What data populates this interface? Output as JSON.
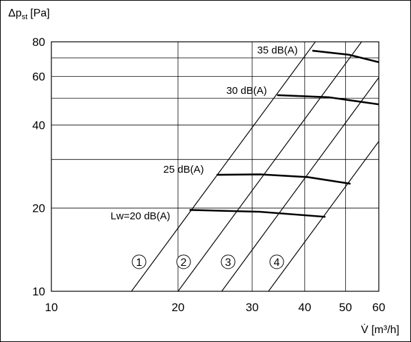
{
  "chart_data": {
    "type": "line",
    "y_label": {
      "main": "Δp",
      "sub": "st",
      "unit": "[Pa]"
    },
    "x_label": "V̇ [m³/h]",
    "log_x": true,
    "log_y": true,
    "grid": true,
    "xlim": [
      10,
      60
    ],
    "ylim": [
      10,
      80
    ],
    "xticks": [
      10,
      20,
      30,
      40,
      50,
      60
    ],
    "yticks": [
      10,
      20,
      40,
      60,
      80
    ],
    "y_minor_grid": [
      30,
      50,
      70
    ],
    "color": "#000000",
    "series": [
      {
        "name": "1",
        "x": [
          15.5,
          42.4
        ],
        "values": [
          10,
          80
        ]
      },
      {
        "name": "2",
        "x": [
          20,
          54.6
        ],
        "values": [
          10,
          80
        ]
      },
      {
        "name": "3",
        "x": [
          25.4,
          60
        ],
        "values": [
          10,
          59.4
        ]
      },
      {
        "name": "4",
        "x": [
          32.8,
          60
        ],
        "values": [
          10,
          34.9
        ]
      },
      {
        "name": "35 dB(A)",
        "x": [
          41.7,
          51,
          60
        ],
        "values": [
          74.3,
          71.8,
          67.5
        ]
      },
      {
        "name": "30 dB(A)",
        "x": [
          34.4,
          45.6,
          60
        ],
        "values": [
          51.3,
          50.4,
          47.5
        ]
      },
      {
        "name": "25 dB(A)",
        "x": [
          24.7,
          31.3,
          40.7,
          51.4
        ],
        "values": [
          26.4,
          26.5,
          25.9,
          24.5
        ]
      },
      {
        "name": "Lw=20 dB(A)",
        "x": [
          21.3,
          31.3,
          44.8
        ],
        "values": [
          19.7,
          19.4,
          18.6
        ]
      }
    ]
  }
}
